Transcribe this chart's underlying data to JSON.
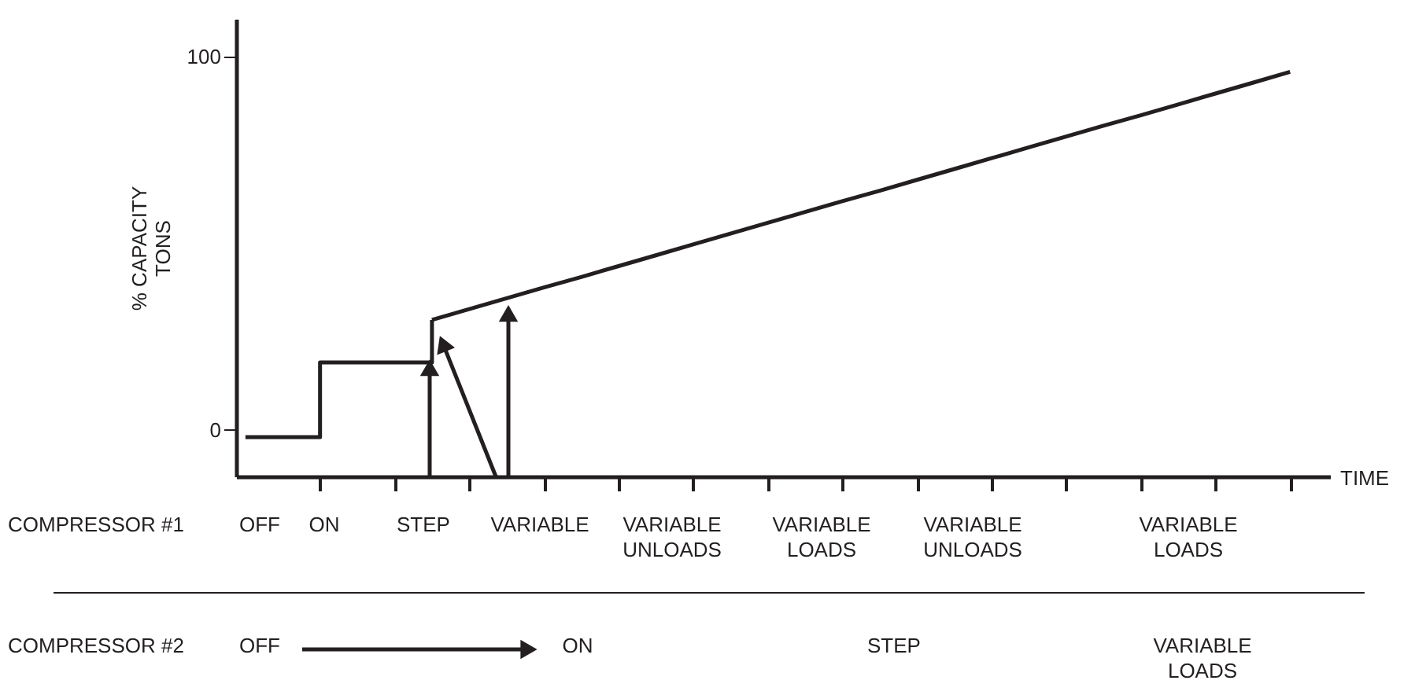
{
  "chart_data": {
    "type": "line",
    "ylabel": "% CAPACITY\nTONS",
    "xlabel": "TIME",
    "ylim": [
      -12.5,
      110
    ],
    "yticks": [
      0,
      100
    ],
    "tick_labels": "y",
    "grid": false,
    "categories": [
      null,
      null,
      null,
      null,
      null,
      null,
      null,
      null,
      null,
      null,
      null,
      null,
      null,
      null,
      null,
      null,
      null,
      null,
      null,
      null,
      null,
      null,
      null,
      null,
      null,
      null,
      null,
      null,
      null
    ],
    "series": [
      {
        "type": "step",
        "color": "#231f20",
        "values": [
          -2,
          -2,
          18,
          18,
          18,
          29.4,
          null,
          null,
          null,
          null,
          null,
          null,
          null,
          null,
          null,
          null,
          null,
          null,
          null,
          null,
          null,
          null,
          null,
          null,
          null,
          null,
          null,
          null,
          null
        ]
      },
      {
        "type": "line",
        "color": "#231f20",
        "values": [
          null,
          null,
          null,
          null,
          null,
          29.4,
          32.3,
          35.2,
          38.1,
          40.9,
          43.8,
          46.7,
          49.6,
          52.5,
          55.4,
          58.3,
          61.2,
          64.0,
          66.9,
          69.8,
          72.7,
          75.6,
          78.5,
          81.4,
          84.2,
          87.1,
          90.0,
          92.9,
          95.8
        ]
      }
    ],
    "annotations": [
      "COMPRESSOR #1",
      "OFF",
      "ON",
      "STEP",
      "VARIABLE",
      "VARIABLE\nUNLOADS",
      "VARIABLE\nLOADS",
      "VARIABLE\nUNLOADS",
      "VARIABLE\nLOADS",
      "COMPRESSOR #2",
      "OFF",
      "ON",
      "STEP",
      "VARIABLE\nLOADS"
    ]
  }
}
